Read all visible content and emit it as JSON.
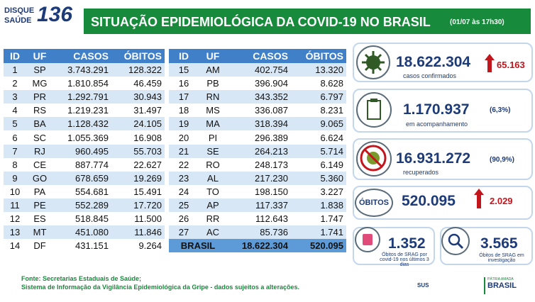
{
  "header": {
    "logo_top": "DISQUE",
    "logo_bottom": "SAÚDE",
    "logo_number": "136",
    "title": "SITUAÇÃO EPIDEMIOLÓGICA DA COVID-19 NO BRASIL",
    "timestamp": "(01/07 às 17h30)"
  },
  "tables": [
    {
      "columns": [
        "ID",
        "UF",
        "CASOS",
        "ÓBITOS"
      ],
      "rows": [
        [
          "1",
          "SP",
          "3.743.291",
          "128.322"
        ],
        [
          "2",
          "MG",
          "1.810.854",
          "46.459"
        ],
        [
          "3",
          "PR",
          "1.292.791",
          "30.943"
        ],
        [
          "4",
          "RS",
          "1.219.231",
          "31.497"
        ],
        [
          "5",
          "BA",
          "1.128.432",
          "24.105"
        ],
        [
          "6",
          "SC",
          "1.055.369",
          "16.908"
        ],
        [
          "7",
          "RJ",
          "960.495",
          "55.703"
        ],
        [
          "8",
          "CE",
          "887.774",
          "22.627"
        ],
        [
          "9",
          "GO",
          "678.659",
          "19.269"
        ],
        [
          "10",
          "PA",
          "554.681",
          "15.491"
        ],
        [
          "11",
          "PE",
          "552.289",
          "17.720"
        ],
        [
          "12",
          "ES",
          "518.845",
          "11.500"
        ],
        [
          "13",
          "MT",
          "451.080",
          "11.846"
        ],
        [
          "14",
          "DF",
          "431.151",
          "9.264"
        ]
      ]
    },
    {
      "columns": [
        "ID",
        "UF",
        "CASOS",
        "ÓBITOS"
      ],
      "rows": [
        [
          "15",
          "AM",
          "402.754",
          "13.320"
        ],
        [
          "16",
          "PB",
          "396.904",
          "8.628"
        ],
        [
          "17",
          "RN",
          "343.352",
          "6.797"
        ],
        [
          "18",
          "MS",
          "336.087",
          "8.231"
        ],
        [
          "19",
          "MA",
          "318.394",
          "9.065"
        ],
        [
          "20",
          "PI",
          "296.389",
          "6.624"
        ],
        [
          "21",
          "SE",
          "264.213",
          "5.714"
        ],
        [
          "22",
          "RO",
          "248.173",
          "6.149"
        ],
        [
          "23",
          "AL",
          "217.230",
          "5.360"
        ],
        [
          "24",
          "TO",
          "198.150",
          "3.227"
        ],
        [
          "25",
          "AP",
          "117.337",
          "1.838"
        ],
        [
          "26",
          "RR",
          "112.643",
          "1.747"
        ],
        [
          "27",
          "AC",
          "85.736",
          "1.741"
        ]
      ],
      "total": [
        "BRASIL",
        "18.622.304",
        "520.095"
      ]
    }
  ],
  "cards": [
    {
      "value": "18.622.304",
      "change": "65.163",
      "label": "casos confirmados"
    },
    {
      "value": "1.170.937",
      "percent": "(6,3%)",
      "label": "em acompanhamento"
    },
    {
      "value": "16.931.272",
      "percent": "(90,9%)",
      "label": "recuperados"
    },
    {
      "badge": "ÓBITOS",
      "value": "520.095",
      "change": "2.029"
    },
    {
      "value": "1.352",
      "label": "Óbitos de SRAG por covid-19 nos últimos 3 dias"
    },
    {
      "value": "3.565",
      "label": "Óbitos de SRAG em investigação"
    }
  ],
  "footer": {
    "source": "Fonte: Secretarias Estaduais de Saúde;",
    "system": "Sistema de Informação da Vigilância Epidemiológica da Gripe - dados sujeitos a alterações."
  },
  "logos": {
    "sus": "SUS",
    "brasil": "BRASIL",
    "motto": "PÁTRIA AMADA"
  }
}
